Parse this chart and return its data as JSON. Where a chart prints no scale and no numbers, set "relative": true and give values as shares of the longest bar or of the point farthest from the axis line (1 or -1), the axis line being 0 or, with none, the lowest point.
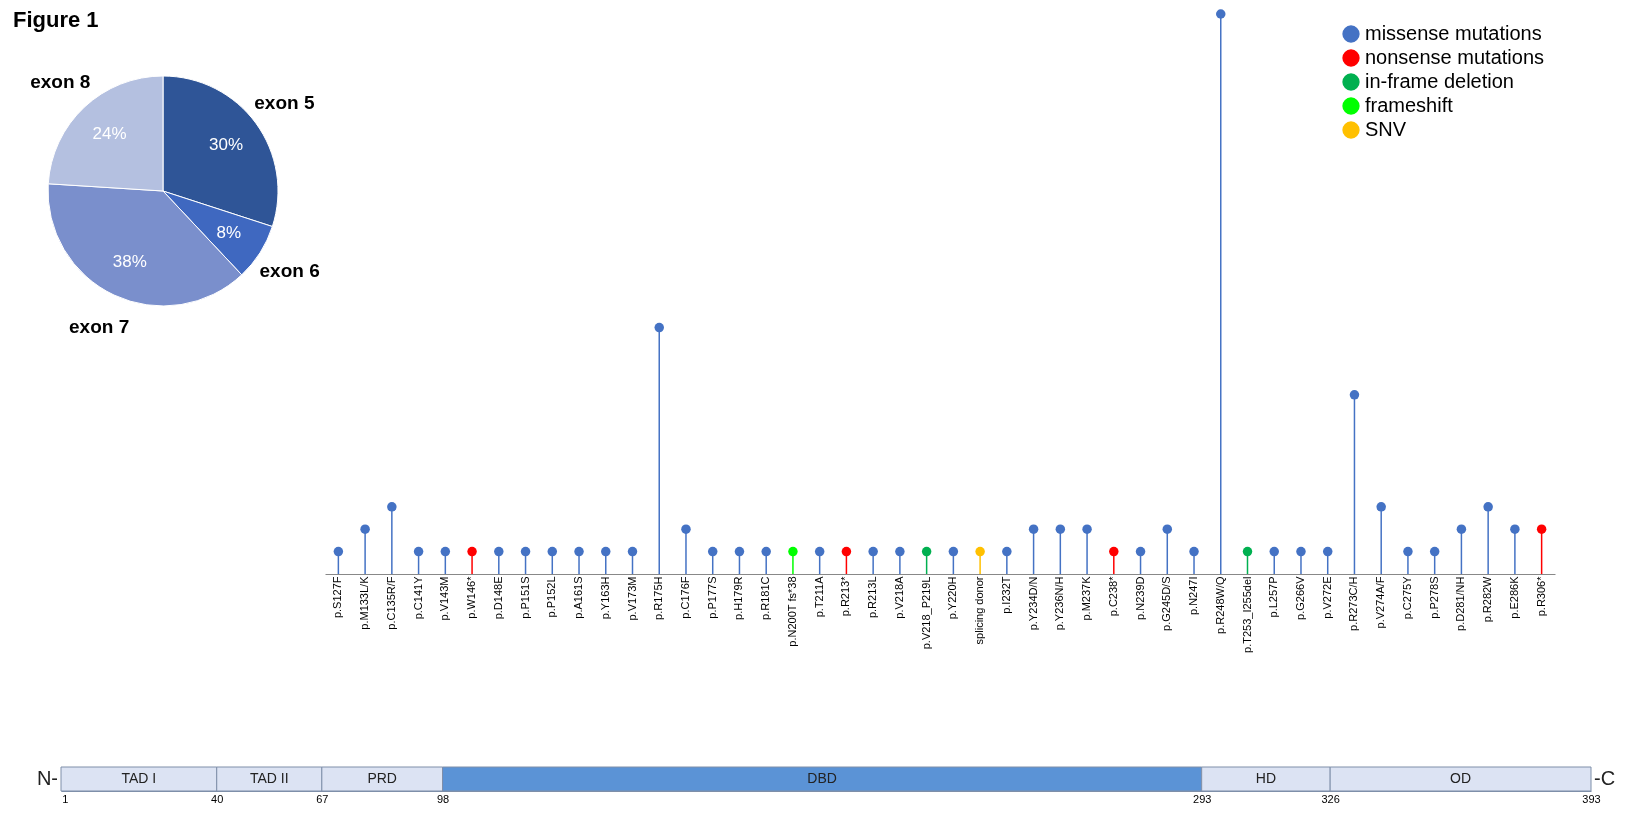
{
  "chart_data": [
    {
      "type": "pie",
      "title": "Figure 1",
      "categories": [
        "exon 5",
        "exon 6",
        "exon 7",
        "exon 8"
      ],
      "values": [
        30,
        8,
        38,
        24
      ],
      "value_labels": [
        "30%",
        "8%",
        "38%",
        "24%"
      ],
      "colors": [
        "#2f5597",
        "#3f68c0",
        "#7a8fcc",
        "#b4c0e0"
      ]
    },
    {
      "type": "lollipop",
      "relative": true,
      "legend": "top right",
      "marker": "circle",
      "categories": [
        "p.S127F",
        "p.M133L/K",
        "p.C135R/F",
        "p.C141Y",
        "p.V143M",
        "p.W146*",
        "p.D148E",
        "p.P151S",
        "p.P152L",
        "p.A161S",
        "p.Y163H",
        "p.V173M",
        "p.R175H",
        "p.C176F",
        "p.P177S",
        "p.H179R",
        "p.R181C",
        "p.N200T fs*38",
        "p.T211A",
        "p.R213*",
        "p.R213L",
        "p.V218A",
        "p.V218_P219L",
        "p.Y220H",
        "splicing donor",
        "p.I232T",
        "p.Y234D/N",
        "p.Y236N/H",
        "p.M237K",
        "p.C238*",
        "p.N239D",
        "p.G245D/S",
        "p.N247I",
        "p.R248W/Q",
        "p.T253_I255del",
        "p.L257P",
        "p.G266V",
        "p.V272E",
        "p.R273C/H",
        "p.V274A/F",
        "p.C275Y",
        "p.P278S",
        "p.D281/NH",
        "p.R282W",
        "p.E286K",
        "p.R306*"
      ],
      "series": [
        {
          "name": "missense mutations",
          "color": "#4472c4",
          "values": [
            0.04,
            0.08,
            0.12,
            0.04,
            0.04,
            null,
            0.04,
            0.04,
            0.04,
            0.04,
            0.04,
            0.04,
            0.44,
            0.08,
            0.04,
            0.04,
            0.04,
            null,
            0.04,
            null,
            0.04,
            0.04,
            null,
            0.04,
            null,
            0.04,
            0.08,
            0.08,
            0.08,
            null,
            0.04,
            0.08,
            0.04,
            1,
            null,
            0.04,
            0.04,
            0.04,
            0.32,
            0.12,
            0.04,
            0.04,
            0.08,
            0.12,
            0.08,
            null
          ]
        },
        {
          "name": "nonsense mutations",
          "color": "#ff0000",
          "values": [
            null,
            null,
            null,
            null,
            null,
            0.04,
            null,
            null,
            null,
            null,
            null,
            null,
            null,
            null,
            null,
            null,
            null,
            null,
            null,
            0.04,
            null,
            null,
            null,
            null,
            null,
            null,
            null,
            null,
            null,
            0.04,
            null,
            null,
            null,
            null,
            null,
            null,
            null,
            null,
            null,
            null,
            null,
            null,
            null,
            null,
            null,
            0.08
          ]
        },
        {
          "name": "in-frame deletion",
          "color": "#00b050",
          "values": [
            null,
            null,
            null,
            null,
            null,
            null,
            null,
            null,
            null,
            null,
            null,
            null,
            null,
            null,
            null,
            null,
            null,
            null,
            null,
            null,
            null,
            null,
            0.04,
            null,
            null,
            null,
            null,
            null,
            null,
            null,
            null,
            null,
            null,
            null,
            0.04,
            null,
            null,
            null,
            null,
            null,
            null,
            null,
            null,
            null,
            null,
            null
          ]
        },
        {
          "name": "frameshift",
          "color": "#00ff00",
          "values": [
            null,
            null,
            null,
            null,
            null,
            null,
            null,
            null,
            null,
            null,
            null,
            null,
            null,
            null,
            null,
            null,
            null,
            0.04,
            null,
            null,
            null,
            null,
            null,
            null,
            null,
            null,
            null,
            null,
            null,
            null,
            null,
            null,
            null,
            null,
            null,
            null,
            null,
            null,
            null,
            null,
            null,
            null,
            null,
            null,
            null,
            null
          ]
        },
        {
          "name": "SNV",
          "color": "#ffc000",
          "values": [
            null,
            null,
            null,
            null,
            null,
            null,
            null,
            null,
            null,
            null,
            null,
            null,
            null,
            null,
            null,
            null,
            null,
            null,
            null,
            null,
            null,
            null,
            null,
            null,
            0.04,
            null,
            null,
            null,
            null,
            null,
            null,
            null,
            null,
            null,
            null,
            null,
            null,
            null,
            null,
            null,
            null,
            null,
            null,
            null,
            null,
            null
          ]
        }
      ]
    },
    {
      "type": "bar",
      "orientation": "horizontal",
      "stacked": true,
      "categories": [
        null
      ],
      "xlim": [
        0,
        393
      ],
      "xticks": [
        1,
        40,
        67,
        98,
        293,
        326,
        393
      ],
      "annotations": [
        "N-",
        "-C"
      ],
      "series": [
        {
          "name": "TAD I",
          "color": "#dce3f3",
          "values": [
            40
          ]
        },
        {
          "name": "TAD II",
          "color": "#dce3f3",
          "values": [
            27
          ]
        },
        {
          "name": "PRD",
          "color": "#dce3f3",
          "values": [
            31
          ]
        },
        {
          "name": "DBD",
          "color": "#5b93d6",
          "values": [
            195
          ]
        },
        {
          "name": "HD",
          "color": "#dce3f3",
          "values": [
            33
          ]
        },
        {
          "name": "OD",
          "color": "#dce3f3",
          "values": [
            67
          ]
        }
      ]
    }
  ]
}
